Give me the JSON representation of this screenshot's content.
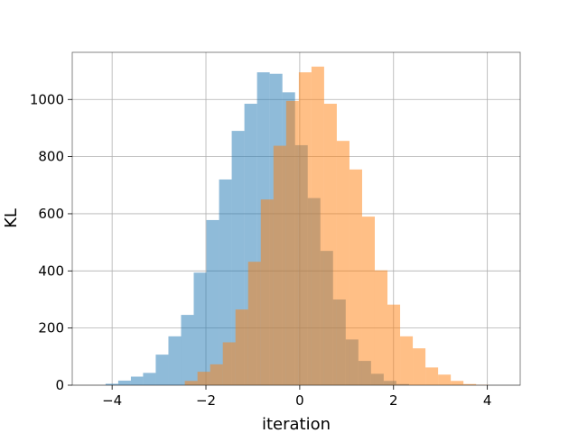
{
  "chart_data": {
    "type": "bar",
    "title": "",
    "xlabel": "iteration",
    "ylabel": "KL",
    "xlim": [
      -4.85,
      4.7
    ],
    "ylim": [
      0,
      1165
    ],
    "grid": true,
    "legend": "none",
    "x_ticks": [
      -4,
      -2,
      0,
      2,
      4
    ],
    "x_tick_labels": [
      "−4",
      "−2",
      "0",
      "2",
      "4"
    ],
    "y_ticks": [
      0,
      200,
      400,
      600,
      800,
      1000
    ],
    "y_tick_labels": [
      "0",
      "200",
      "400",
      "600",
      "800",
      "1000"
    ],
    "series": [
      {
        "color": "#1f77b4",
        "opacity": 0.5,
        "bin_edges": [
          -4.14,
          -3.87,
          -3.6,
          -3.34,
          -3.07,
          -2.8,
          -2.53,
          -2.26,
          -1.99,
          -1.72,
          -1.45,
          -1.18,
          -0.91,
          -0.64,
          -0.37,
          -0.1,
          0.17,
          0.44,
          0.71,
          0.98,
          1.25,
          1.52,
          1.79,
          2.06,
          2.33
        ],
        "counts": [
          5,
          16,
          30,
          43,
          107,
          171,
          246,
          394,
          578,
          720,
          890,
          985,
          1095,
          1090,
          1025,
          840,
          655,
          470,
          300,
          160,
          85,
          40,
          15,
          4
        ]
      },
      {
        "color": "#ff7f0e",
        "opacity": 0.5,
        "bin_edges": [
          -2.45,
          -2.18,
          -1.91,
          -1.64,
          -1.37,
          -1.1,
          -0.83,
          -0.56,
          -0.29,
          -0.02,
          0.25,
          0.52,
          0.79,
          1.06,
          1.33,
          1.6,
          1.87,
          2.14,
          2.41,
          2.68,
          2.95,
          3.22,
          3.49,
          3.76,
          4.03
        ],
        "counts": [
          15,
          47,
          73,
          150,
          265,
          432,
          650,
          838,
          995,
          1095,
          1115,
          985,
          855,
          755,
          590,
          402,
          282,
          171,
          129,
          62,
          37,
          15,
          4,
          1
        ]
      }
    ]
  }
}
